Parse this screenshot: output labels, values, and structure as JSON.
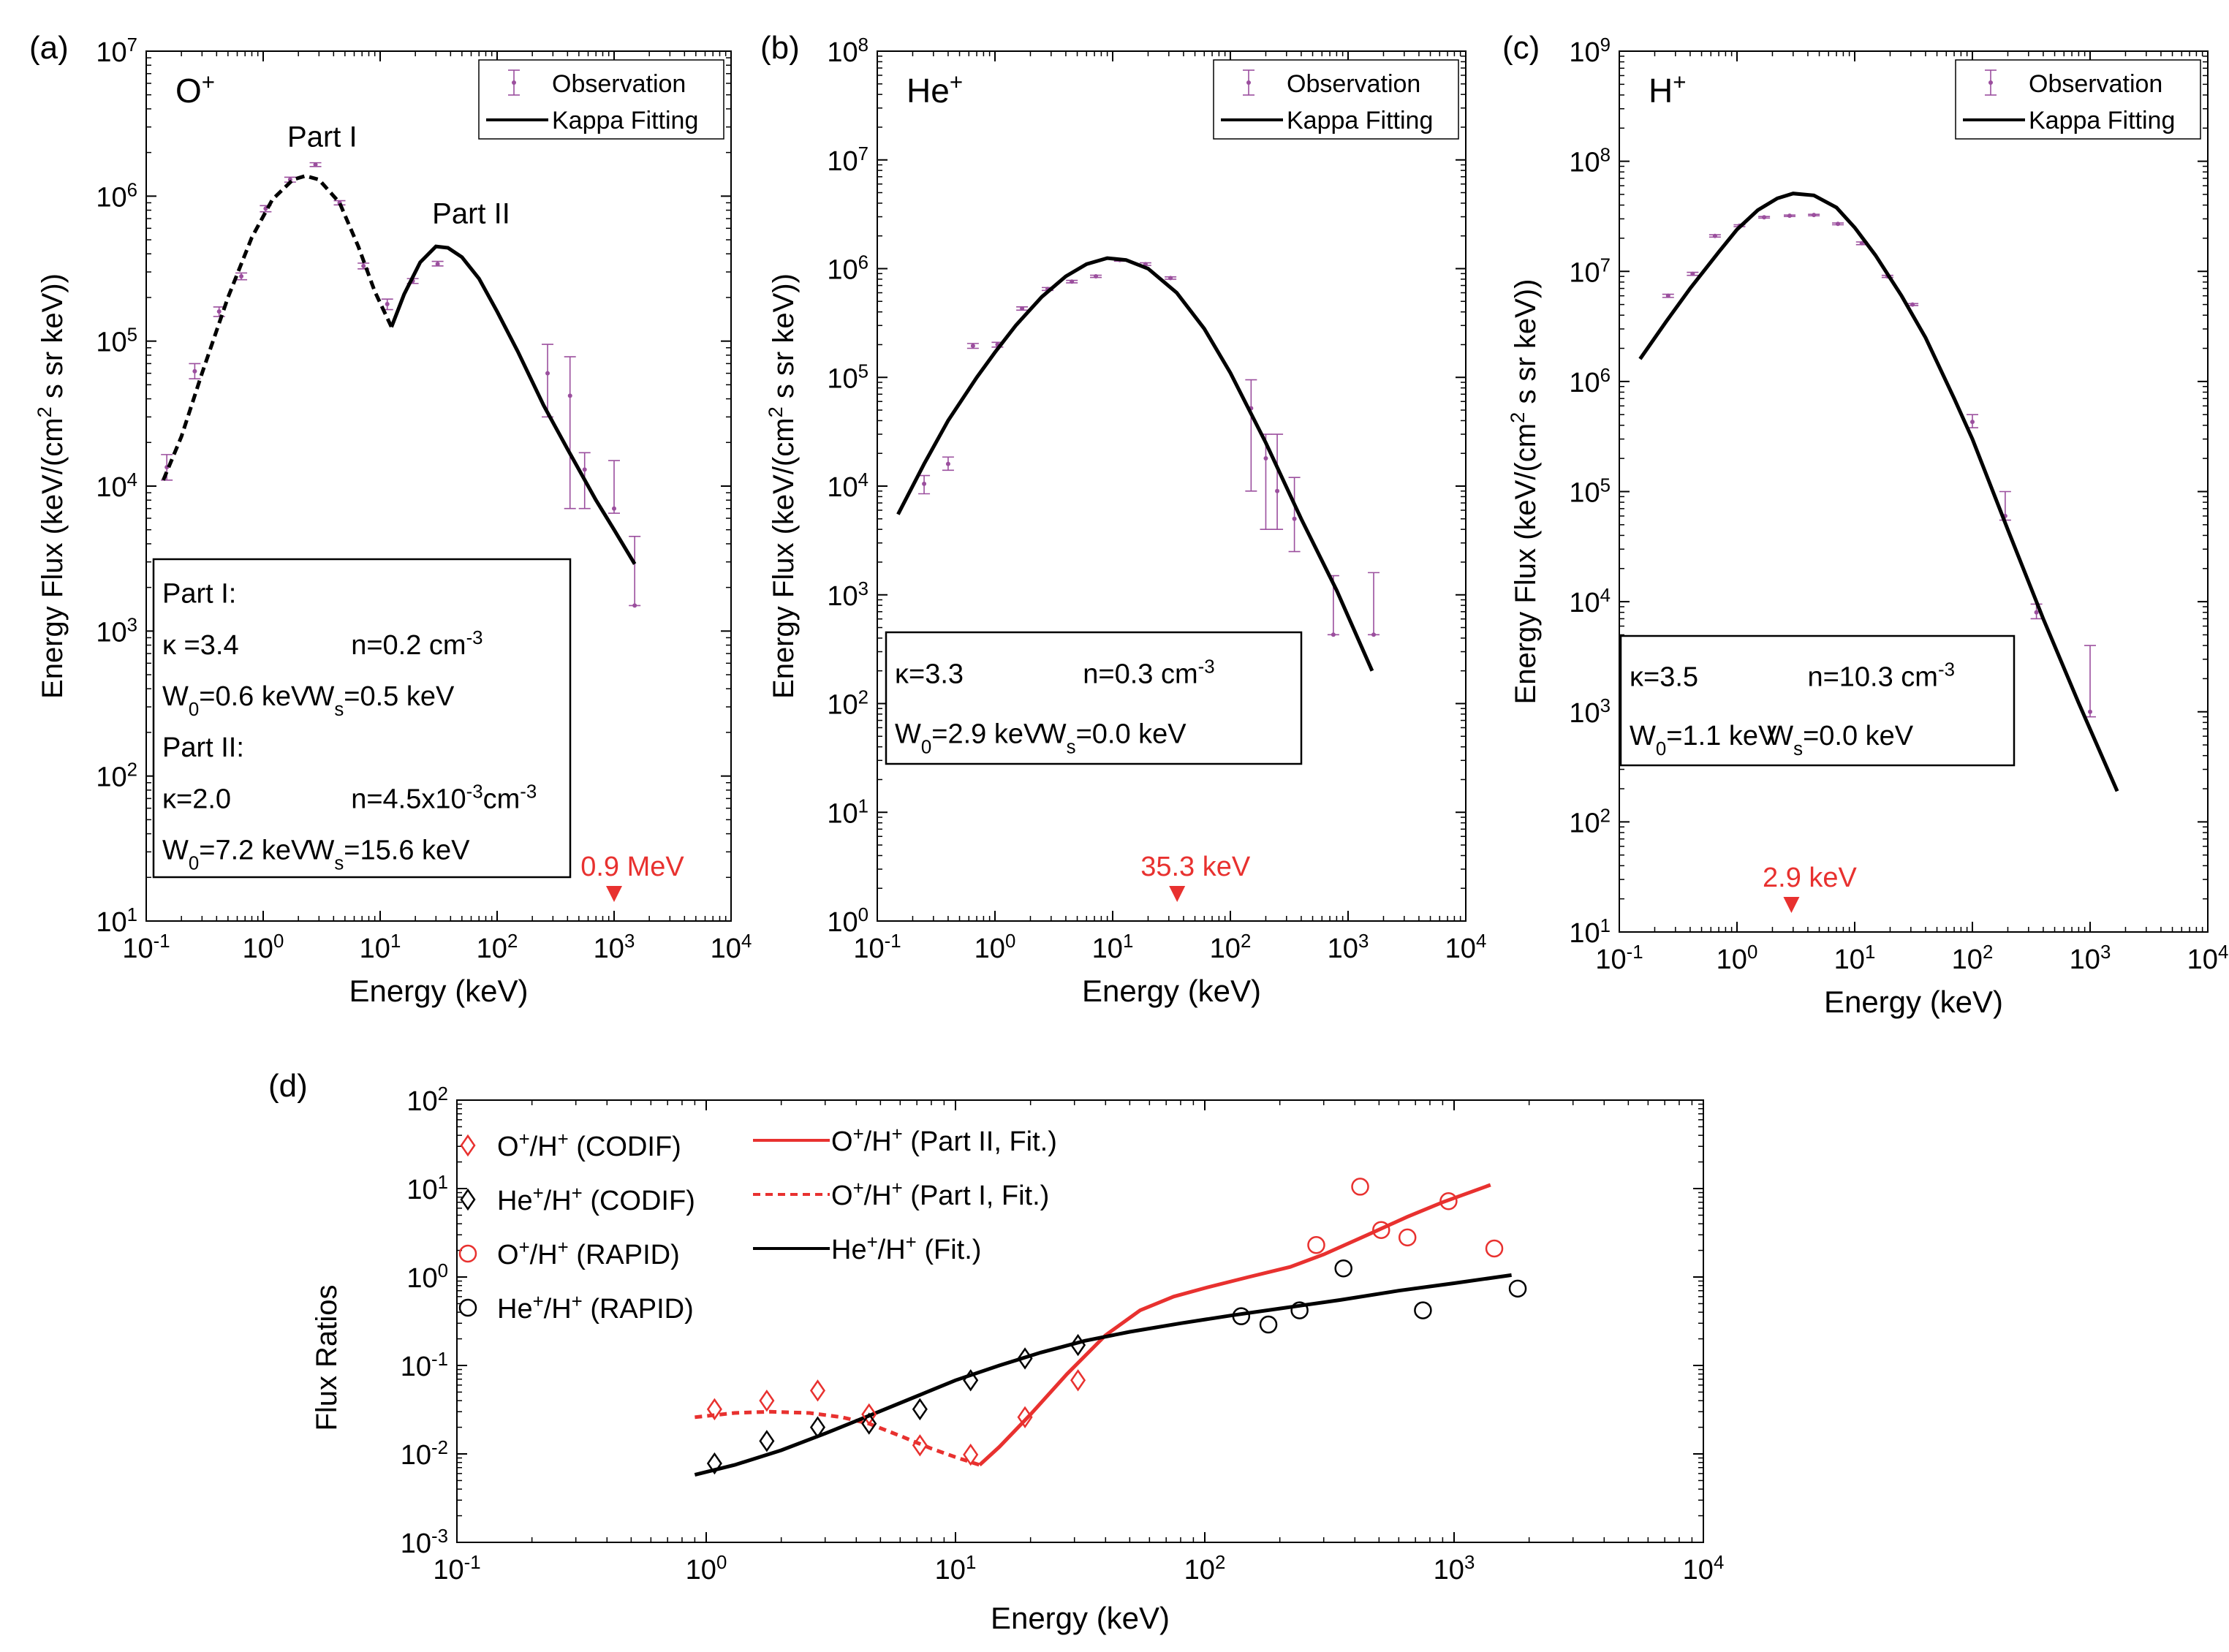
{
  "chart_data": [
    {
      "id": "a",
      "panel_label": "(a)",
      "type": "line",
      "scale": "log-log",
      "ion_label": "O",
      "ion_charge": "+",
      "xlabel": "Energy (keV)",
      "ylabel": "Energy Flux (keV/(cm² s sr keV))",
      "xlim": [
        0.1,
        10000
      ],
      "ylim": [
        10,
        10000000
      ],
      "legend": [
        "Observation",
        "Kappa Fitting"
      ],
      "legend_position": "top-right",
      "part_labels": [
        {
          "text": "Part I",
          "x": 3.2,
          "y": 2200000
        },
        {
          "text": "Part II",
          "x": 60,
          "y": 650000
        }
      ],
      "observations": [
        {
          "x": 0.15,
          "y": 13500,
          "lo": 11000,
          "hi": 16500
        },
        {
          "x": 0.26,
          "y": 62000,
          "lo": 55000,
          "hi": 70000
        },
        {
          "x": 0.42,
          "y": 160000,
          "lo": 148000,
          "hi": 172000
        },
        {
          "x": 0.65,
          "y": 280000,
          "lo": 265000,
          "hi": 295000
        },
        {
          "x": 1.05,
          "y": 820000,
          "lo": 780000,
          "hi": 860000
        },
        {
          "x": 1.7,
          "y": 1300000,
          "lo": 1250000,
          "hi": 1350000
        },
        {
          "x": 2.8,
          "y": 1650000,
          "lo": 1600000,
          "hi": 1700000
        },
        {
          "x": 4.5,
          "y": 900000,
          "lo": 870000,
          "hi": 930000
        },
        {
          "x": 7.2,
          "y": 330000,
          "lo": 315000,
          "hi": 345000
        },
        {
          "x": 11.5,
          "y": 180000,
          "lo": 165000,
          "hi": 195000
        },
        {
          "x": 19,
          "y": 260000,
          "lo": 250000,
          "hi": 270000
        },
        {
          "x": 31,
          "y": 340000,
          "lo": 330000,
          "hi": 355000
        },
        {
          "x": 270,
          "y": 60000,
          "lo": 30000,
          "hi": 95000
        },
        {
          "x": 420,
          "y": 42000,
          "lo": 7000,
          "hi": 78000
        },
        {
          "x": 560,
          "y": 13000,
          "lo": 7000,
          "hi": 17000
        },
        {
          "x": 1000,
          "y": 7000,
          "lo": 6500,
          "hi": 15000
        },
        {
          "x": 1500,
          "y": 1500,
          "lo": 1500,
          "hi": 4500
        }
      ],
      "fit_dashed": {
        "x": [
          0.14,
          0.2,
          0.3,
          0.5,
          0.8,
          1.2,
          1.8,
          2.3,
          3.0,
          4.5,
          6.5,
          9.0,
          12.5
        ],
        "y": [
          11000,
          22000,
          60000,
          200000,
          520000,
          950000,
          1300000,
          1380000,
          1300000,
          900000,
          450000,
          220000,
          125000
        ]
      },
      "fit_solid": {
        "x": [
          12.5,
          16,
          22,
          30,
          38,
          50,
          70,
          100,
          150,
          250,
          400,
          700,
          1000,
          1500
        ],
        "y": [
          125000,
          210000,
          350000,
          450000,
          440000,
          380000,
          270000,
          160000,
          85000,
          36000,
          18000,
          8000,
          5000,
          2900
        ]
      },
      "params_box": {
        "lines": [
          {
            "label": "Part I:"
          },
          {
            "kappa": "κ =3.4",
            "n": "n=0.2 cm",
            "n_exp": "-3"
          },
          {
            "w0": "W",
            "w0_sub": "0",
            "w0_val": "=0.6 keV",
            "ws": "W",
            "ws_sub": "s",
            "ws_val": "=0.5 keV"
          },
          {
            "label": "Part II:"
          },
          {
            "kappa": "κ=2.0",
            "n": "n=4.5x10",
            "n_exp": "-3",
            "n_unit": "cm",
            "n_unit_exp": "-3"
          },
          {
            "w0": "W",
            "w0_sub": "0",
            "w0_val": "=7.2 keV",
            "ws": "W",
            "ws_sub": "s",
            "ws_val": "=15.6 keV"
          }
        ]
      },
      "marker": {
        "label": "0.9 MeV",
        "x": 1000,
        "color": "#e8312f"
      }
    },
    {
      "id": "b",
      "panel_label": "(b)",
      "type": "line",
      "scale": "log-log",
      "ion_label": "He",
      "ion_charge": "+",
      "xlabel": "Energy (keV)",
      "ylabel": "Energy Flux (keV/(cm² s sr keV))",
      "xlim": [
        0.1,
        10000
      ],
      "ylim": [
        1,
        100000000
      ],
      "legend": [
        "Observation",
        "Kappa Fitting"
      ],
      "legend_position": "top-right",
      "observations": [
        {
          "x": 0.25,
          "y": 10500,
          "lo": 8500,
          "hi": 12500
        },
        {
          "x": 0.4,
          "y": 16000,
          "lo": 14000,
          "hi": 18500
        },
        {
          "x": 0.65,
          "y": 195000,
          "lo": 185000,
          "hi": 205000
        },
        {
          "x": 1.05,
          "y": 200000,
          "lo": 190000,
          "hi": 210000
        },
        {
          "x": 1.7,
          "y": 430000,
          "lo": 415000,
          "hi": 445000
        },
        {
          "x": 2.8,
          "y": 650000,
          "lo": 630000,
          "hi": 670000
        },
        {
          "x": 4.5,
          "y": 760000,
          "lo": 740000,
          "hi": 780000
        },
        {
          "x": 7.2,
          "y": 850000,
          "lo": 830000,
          "hi": 870000
        },
        {
          "x": 11.5,
          "y": 1200000,
          "lo": 1170000,
          "hi": 1230000
        },
        {
          "x": 19,
          "y": 1100000,
          "lo": 1070000,
          "hi": 1130000
        },
        {
          "x": 31,
          "y": 820000,
          "lo": 800000,
          "hi": 840000
        },
        {
          "x": 150,
          "y": 52000,
          "lo": 9000,
          "hi": 95000
        },
        {
          "x": 200,
          "y": 18000,
          "lo": 4000,
          "hi": 30000
        },
        {
          "x": 250,
          "y": 9000,
          "lo": 4000,
          "hi": 30000
        },
        {
          "x": 350,
          "y": 5000,
          "lo": 2500,
          "hi": 12000
        },
        {
          "x": 750,
          "y": 430,
          "lo": 430,
          "hi": 1500
        },
        {
          "x": 1650,
          "y": 430,
          "lo": 430,
          "hi": 1600
        }
      ],
      "fit_solid": {
        "x": [
          0.15,
          0.25,
          0.4,
          0.7,
          1.0,
          1.5,
          2.5,
          4.0,
          6.0,
          9.0,
          13,
          20,
          35,
          60,
          100,
          200,
          400,
          800,
          1600
        ],
        "y": [
          5500,
          16000,
          40000,
          100000,
          170000,
          300000,
          550000,
          850000,
          1100000,
          1250000,
          1200000,
          1000000,
          600000,
          280000,
          110000,
          25000,
          5000,
          1100,
          200
        ]
      },
      "params_box": {
        "lines": [
          {
            "kappa": "κ=3.3",
            "n": "n=0.3 cm",
            "n_exp": "-3"
          },
          {
            "w0": "W",
            "w0_sub": "0",
            "w0_val": "=2.9 keV",
            "ws": "W",
            "ws_sub": "s",
            "ws_val": "=0.0 keV"
          }
        ]
      },
      "marker": {
        "label": "35.3 keV",
        "x": 35.3,
        "color": "#e8312f"
      }
    },
    {
      "id": "c",
      "panel_label": "(c)",
      "type": "line",
      "scale": "log-log",
      "ion_label": "H",
      "ion_charge": "+",
      "xlabel": "Energy (keV)",
      "ylabel": "Energy Flux (keV/(cm² s sr keV))",
      "xlim": [
        0.1,
        10000
      ],
      "ylim": [
        10,
        1000000000
      ],
      "legend": [
        "Observation",
        "Kappa Fitting"
      ],
      "legend_position": "top-right",
      "observations": [
        {
          "x": 0.26,
          "y": 6000000,
          "lo": 5800000,
          "hi": 6200000
        },
        {
          "x": 0.42,
          "y": 9500000,
          "lo": 9200000,
          "hi": 9800000
        },
        {
          "x": 0.65,
          "y": 21000000,
          "lo": 20500000,
          "hi": 21500000
        },
        {
          "x": 1.05,
          "y": 26000000,
          "lo": 25500000,
          "hi": 26500000
        },
        {
          "x": 1.7,
          "y": 31000000,
          "lo": 30500000,
          "hi": 31500000
        },
        {
          "x": 2.8,
          "y": 32000000,
          "lo": 31500000,
          "hi": 32500000
        },
        {
          "x": 4.5,
          "y": 32500000,
          "lo": 32000000,
          "hi": 33000000
        },
        {
          "x": 7.2,
          "y": 27000000,
          "lo": 26500000,
          "hi": 27500000
        },
        {
          "x": 11.5,
          "y": 18000000,
          "lo": 17500000,
          "hi": 18500000
        },
        {
          "x": 19,
          "y": 9000000,
          "lo": 8800000,
          "hi": 9200000
        },
        {
          "x": 31,
          "y": 5000000,
          "lo": 4900000,
          "hi": 5100000
        },
        {
          "x": 100,
          "y": 430000,
          "lo": 380000,
          "hi": 500000
        },
        {
          "x": 190,
          "y": 60000,
          "lo": 55000,
          "hi": 100000
        },
        {
          "x": 350,
          "y": 8000,
          "lo": 7000,
          "hi": 9500
        },
        {
          "x": 1000,
          "y": 1000,
          "lo": 900,
          "hi": 4000
        }
      ],
      "fit_solid": {
        "x": [
          0.15,
          0.25,
          0.4,
          0.7,
          1.0,
          1.5,
          2.2,
          3.0,
          4.5,
          7,
          10,
          15,
          25,
          40,
          70,
          100,
          200,
          400,
          800,
          1700
        ],
        "y": [
          1600000,
          3500000,
          7000000,
          15000000,
          24000000,
          36000000,
          46000000,
          51000000,
          49000000,
          38000000,
          25000000,
          14000000,
          6000000,
          2500000,
          700000,
          300000,
          45000,
          7000,
          1200,
          190
        ]
      },
      "params_box": {
        "lines": [
          {
            "kappa": "κ=3.5",
            "n": "n=10.3 cm",
            "n_exp": "-3"
          },
          {
            "w0": "W",
            "w0_sub": "0",
            "w0_val": "=1.1 keV",
            "ws": "W",
            "ws_sub": "s",
            "ws_val": "=0.0 keV"
          }
        ]
      },
      "marker": {
        "label": "2.9 keV",
        "x": 2.9,
        "color": "#e8312f"
      }
    },
    {
      "id": "d",
      "panel_label": "(d)",
      "type": "scatter",
      "scale": "log-log",
      "xlabel": "Energy (keV)",
      "ylabel": "Flux Ratios",
      "xlim": [
        0.1,
        10000
      ],
      "ylim": [
        0.001,
        100
      ],
      "legend_left": [
        {
          "ion": "O",
          "charge": "+",
          "rest": "/H",
          "rest_charge": "+",
          "suffix": " (CODIF)",
          "marker": "diamond",
          "color": "#e8312f"
        },
        {
          "ion": "He",
          "charge": "+",
          "rest": "/H",
          "rest_charge": "+",
          "suffix": " (CODIF)",
          "marker": "diamond",
          "color": "#000000"
        },
        {
          "ion": "O",
          "charge": "+",
          "rest": "/H",
          "rest_charge": "+",
          "suffix": " (RAPID)",
          "marker": "circle",
          "color": "#e8312f"
        },
        {
          "ion": "He",
          "charge": "+",
          "rest": "/H",
          "rest_charge": "+",
          "suffix": " (RAPID)",
          "marker": "circle",
          "color": "#000000"
        }
      ],
      "legend_right": [
        {
          "ion": "O",
          "charge": "+",
          "rest": "/H",
          "rest_charge": "+",
          "suffix": " (Part II, Fit.)",
          "style": "solid",
          "color": "#e8312f"
        },
        {
          "ion": "O",
          "charge": "+",
          "rest": "/H",
          "rest_charge": "+",
          "suffix": " (Part I, Fit.)",
          "style": "dashed",
          "color": "#e8312f"
        },
        {
          "ion": "He",
          "charge": "+",
          "rest": "/H",
          "rest_charge": "+",
          "suffix": " (Fit.)",
          "style": "solid",
          "color": "#000000"
        }
      ],
      "series": [
        {
          "marker": "diamond",
          "color": "#e8312f",
          "x": [
            1.08,
            1.75,
            2.8,
            4.5,
            7.2,
            11.5,
            19,
            31
          ],
          "y": [
            0.032,
            0.04,
            0.052,
            0.028,
            0.0125,
            0.0098,
            0.026,
            0.068
          ]
        },
        {
          "marker": "diamond",
          "color": "#000000",
          "x": [
            1.08,
            1.75,
            2.8,
            4.5,
            7.2,
            11.5,
            19,
            31
          ],
          "y": [
            0.0078,
            0.014,
            0.02,
            0.022,
            0.032,
            0.068,
            0.12,
            0.17
          ]
        },
        {
          "marker": "circle",
          "color": "#e8312f",
          "x": [
            280,
            420,
            510,
            650,
            950,
            1450
          ],
          "y": [
            2.3,
            10.5,
            3.4,
            2.8,
            7.2,
            2.1
          ]
        },
        {
          "marker": "circle",
          "color": "#000000",
          "x": [
            140,
            180,
            240,
            360,
            750,
            1800
          ],
          "y": [
            0.36,
            0.29,
            0.42,
            1.25,
            0.42,
            0.74
          ]
        }
      ],
      "fits": [
        {
          "style": "solid",
          "color": "#e8312f",
          "x": [
            12.5,
            15,
            20,
            28,
            40,
            55,
            75,
            100,
            150,
            220,
            300,
            450,
            650,
            900,
            1400
          ],
          "y": [
            0.0075,
            0.012,
            0.028,
            0.08,
            0.22,
            0.42,
            0.6,
            0.75,
            1.0,
            1.3,
            1.8,
            3.0,
            4.8,
            7.0,
            11.0
          ]
        },
        {
          "style": "dashed",
          "color": "#e8312f",
          "x": [
            0.9,
            1.3,
            1.8,
            2.6,
            3.5,
            4.5,
            6,
            8,
            10,
            12.5
          ],
          "y": [
            0.026,
            0.029,
            0.03,
            0.029,
            0.026,
            0.022,
            0.016,
            0.0115,
            0.0092,
            0.0075
          ]
        },
        {
          "style": "solid",
          "color": "#000000",
          "x": [
            0.9,
            1.3,
            2.0,
            3.0,
            4.5,
            7,
            10,
            15,
            22,
            33,
            50,
            80,
            130,
            200,
            350,
            600,
            1000,
            1700
          ],
          "y": [
            0.0058,
            0.0075,
            0.011,
            0.017,
            0.027,
            0.045,
            0.068,
            0.1,
            0.14,
            0.19,
            0.24,
            0.3,
            0.37,
            0.44,
            0.55,
            0.7,
            0.85,
            1.05
          ]
        }
      ]
    }
  ]
}
